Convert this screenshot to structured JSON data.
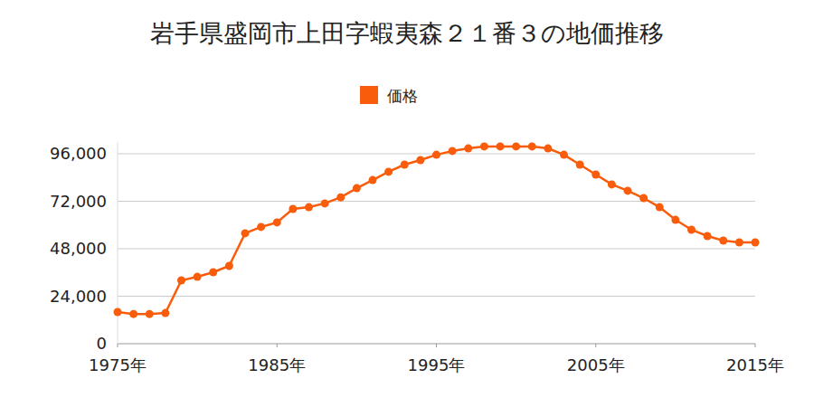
{
  "chart_data": {
    "type": "line",
    "title": "岩手県盛岡市上田字蝦夷森２１番３の地価推移",
    "x": [
      1975,
      1976,
      1977,
      1978,
      1979,
      1980,
      1981,
      1982,
      1983,
      1984,
      1985,
      1986,
      1987,
      1988,
      1989,
      1990,
      1991,
      1992,
      1993,
      1994,
      1995,
      1996,
      1997,
      1998,
      1999,
      2000,
      2001,
      2002,
      2003,
      2004,
      2005,
      2006,
      2007,
      2008,
      2009,
      2010,
      2011,
      2012,
      2013,
      2014,
      2015
    ],
    "series": [
      {
        "name": "価格",
        "color": "#f95c0a",
        "marker": "circle",
        "line_style": "solid",
        "values": [
          16000,
          15000,
          15000,
          15500,
          32000,
          33800,
          36100,
          39300,
          55800,
          59000,
          61300,
          68100,
          69000,
          70900,
          74000,
          78600,
          82700,
          86900,
          90500,
          92800,
          95500,
          97400,
          98700,
          99700,
          99700,
          99700,
          99700,
          98700,
          95500,
          90500,
          85500,
          80500,
          77300,
          73600,
          69000,
          62600,
          57600,
          54400,
          52100,
          51200,
          51200
        ]
      }
    ],
    "xlim": [
      1975,
      2015
    ],
    "xticks": [
      {
        "value": 1975,
        "label": "1975年"
      },
      {
        "value": 1985,
        "label": "1985年"
      },
      {
        "value": 1995,
        "label": "1995年"
      },
      {
        "value": 2005,
        "label": "2005年"
      },
      {
        "value": 2015,
        "label": "2015年"
      }
    ],
    "ylim": [
      0,
      102000
    ],
    "yticks": [
      0,
      {
        "value": 24000,
        "label": "24,000"
      },
      {
        "value": 48000,
        "label": "48,000"
      },
      {
        "value": 72000,
        "label": "72,000"
      },
      {
        "value": 96000,
        "label": "96,000"
      }
    ],
    "grid": true,
    "legend": "top"
  }
}
